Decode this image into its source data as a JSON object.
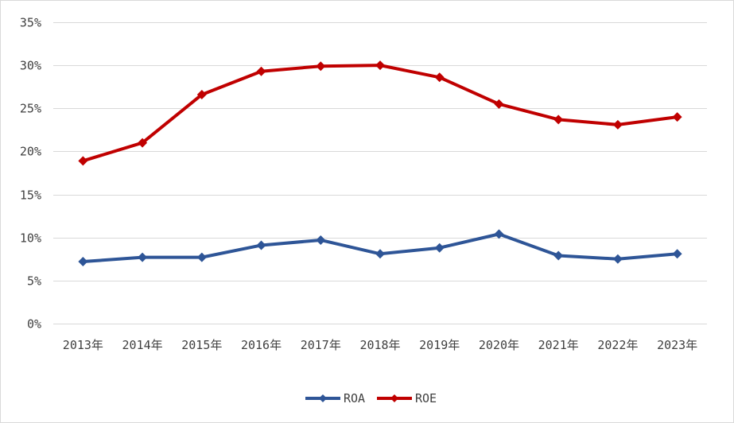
{
  "chart_data": {
    "type": "line",
    "categories": [
      "2013年",
      "2014年",
      "2015年",
      "2016年",
      "2017年",
      "2018年",
      "2019年",
      "2020年",
      "2021年",
      "2022年",
      "2023年"
    ],
    "series": [
      {
        "name": "ROA",
        "color": "#2e5597",
        "values": [
          7.2,
          7.7,
          7.7,
          9.1,
          9.7,
          8.1,
          8.8,
          10.4,
          7.9,
          7.5,
          8.1
        ]
      },
      {
        "name": "ROE",
        "color": "#c00000",
        "values": [
          18.9,
          21.0,
          26.6,
          29.3,
          29.9,
          30.0,
          28.6,
          25.5,
          23.7,
          23.1,
          24.0
        ]
      }
    ],
    "ylim": [
      0,
      35
    ],
    "yticks": [
      0,
      5,
      10,
      15,
      20,
      25,
      30,
      35
    ],
    "ytick_labels": [
      "0%",
      "5%",
      "10%",
      "15%",
      "20%",
      "25%",
      "30%",
      "35%"
    ],
    "grid": true,
    "legend_position": "bottom",
    "marker": "diamond"
  }
}
